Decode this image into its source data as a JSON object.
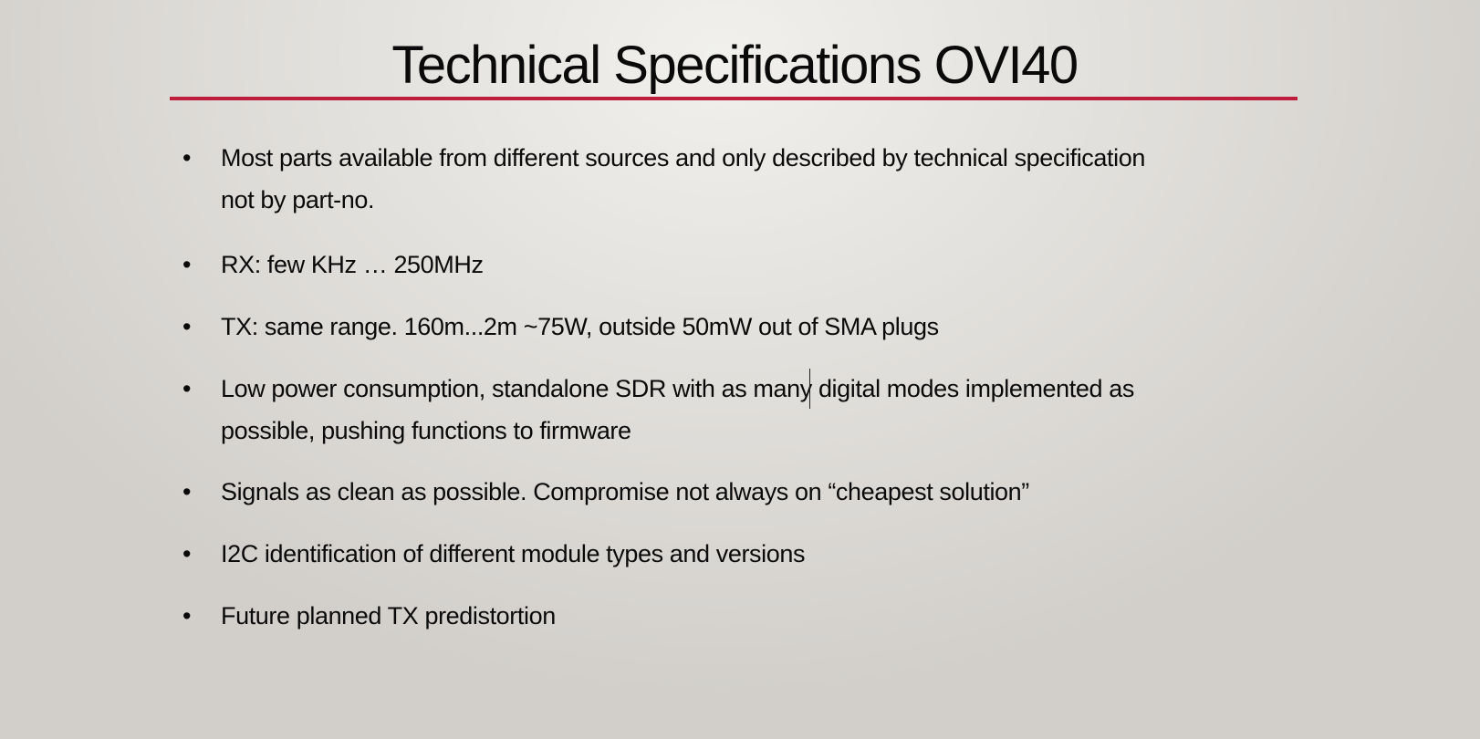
{
  "slide": {
    "title": "Technical Specifications OVI40",
    "accent_color": "#be1e3c",
    "bullet_symbol": "•",
    "items": [
      {
        "lines": [
          "Most parts available from different sources and only described by technical specification",
          "not by part-no."
        ]
      },
      {
        "lines": [
          "RX: few KHz … 250MHz"
        ]
      },
      {
        "lines": [
          "TX: same range. 160m...2m ~75W, outside 50mW out of SMA plugs"
        ]
      },
      {
        "lines": [
          "Low power consumption, standalone SDR with as many digital modes implemented as",
          "possible, pushing functions to firmware"
        ]
      },
      {
        "lines": [
          "Signals as clean as possible. Compromise not always on “cheapest solution”"
        ]
      },
      {
        "lines": [
          "I2C identification of different module types and versions"
        ]
      },
      {
        "lines": [
          "Future planned TX predistortion"
        ]
      }
    ]
  }
}
